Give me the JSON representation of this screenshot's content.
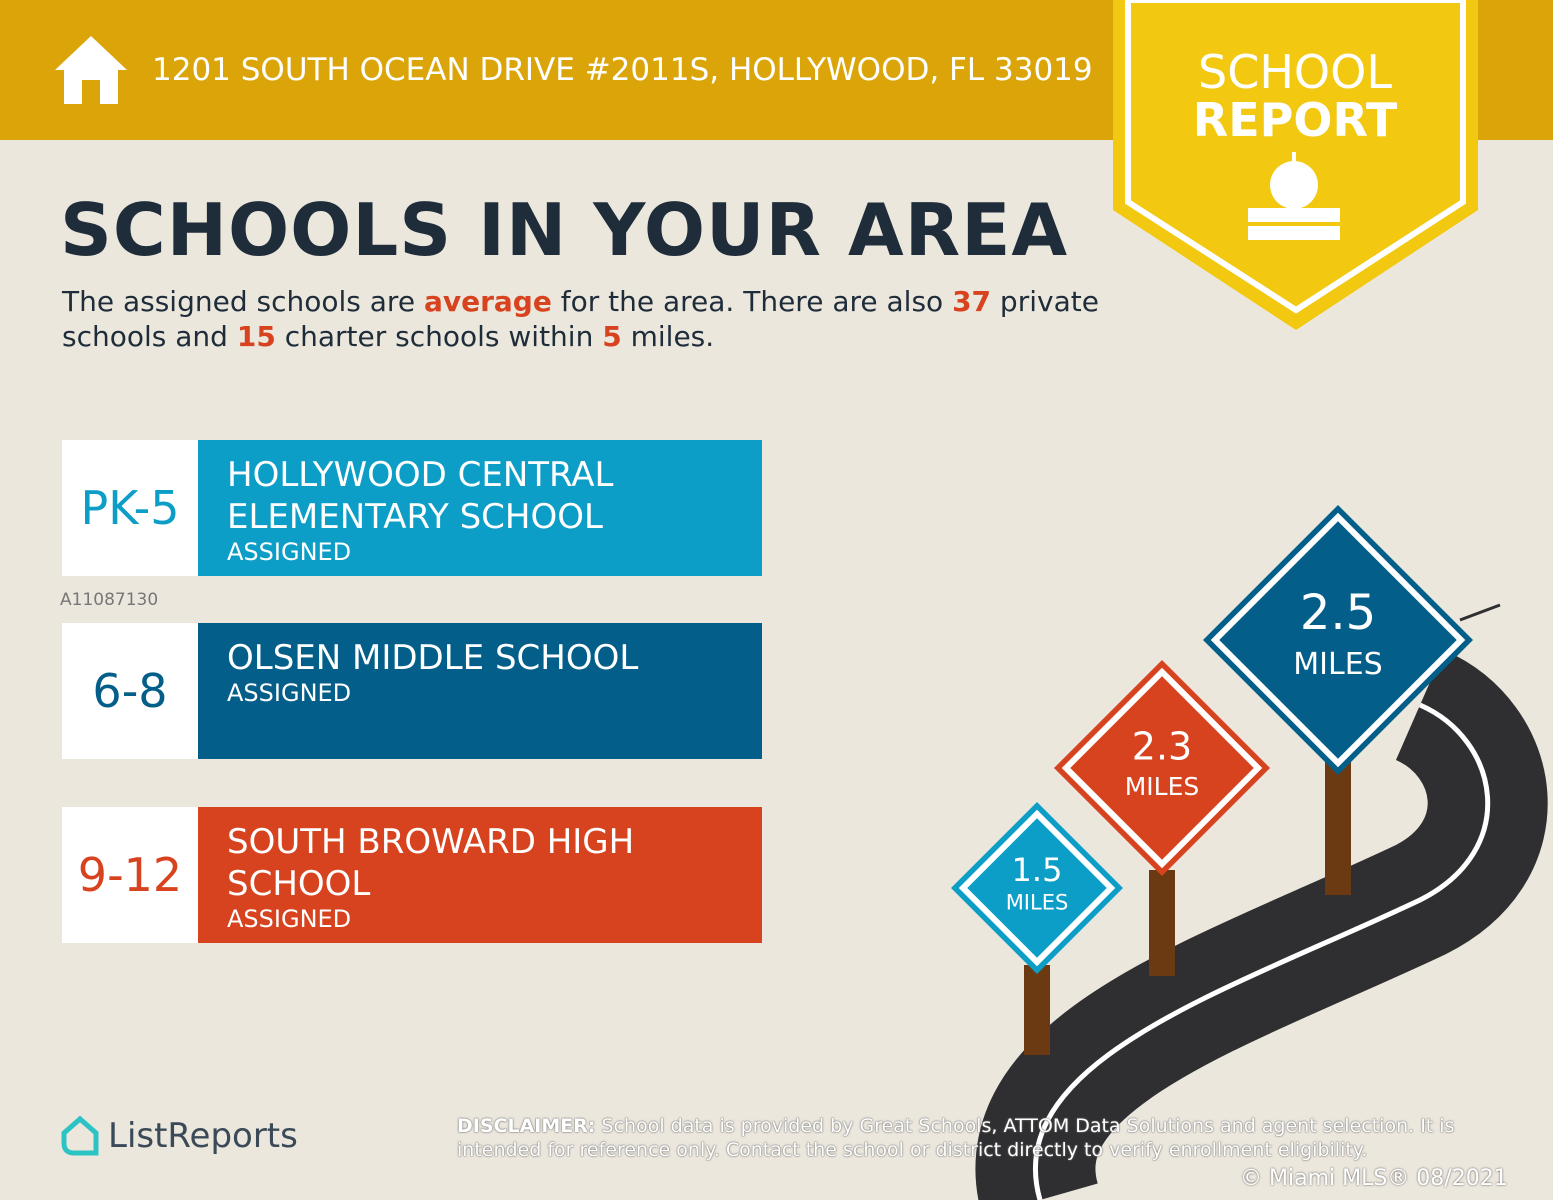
{
  "header": {
    "address": "1201 SOUTH OCEAN DRIVE #2011S, HOLLYWOOD, FL 33019",
    "badge": [
      "SCHOOL",
      "REPORT"
    ]
  },
  "title": "SCHOOLS IN YOUR AREA",
  "intro": [
    "The assigned schools are ",
    "average",
    " for the area. There are also ",
    "37",
    " private schools and ",
    "15",
    " charter schools within ",
    "5",
    " miles."
  ],
  "schools": [
    {
      "grade": "PK-5",
      "name": [
        "HOLLYWOOD CENTRAL",
        "ELEMENTARY SCHOOL"
      ],
      "status": "ASSIGNED",
      "color": "#0c9ec6"
    },
    {
      "grade": "6-8",
      "name": [
        "OLSEN MIDDLE SCHOOL"
      ],
      "status": "ASSIGNED",
      "color": "#035e89"
    },
    {
      "grade": "9-12",
      "name": [
        "SOUTH BROWARD HIGH",
        "SCHOOL"
      ],
      "status": "ASSIGNED",
      "color": "#d8431f"
    }
  ],
  "signs": [
    {
      "distance": "2.5",
      "unit": "MILES",
      "color": "#035e89"
    },
    {
      "distance": "2.3",
      "unit": "MILES",
      "color": "#d8431f"
    },
    {
      "distance": "1.5",
      "unit": "MILES",
      "color": "#0c9ec6"
    }
  ],
  "watermark": "A11087130",
  "logo": "ListReports",
  "disclaimer": {
    "label": "DISCLAIMER:",
    "text": "School data is provided by Great Schools, ATTOM Data Solutions and agent selection. It is intended for reference only. Contact the school or district directly to verify enrollment eligibility."
  },
  "copyright": "© Miami MLS® 08/2021"
}
